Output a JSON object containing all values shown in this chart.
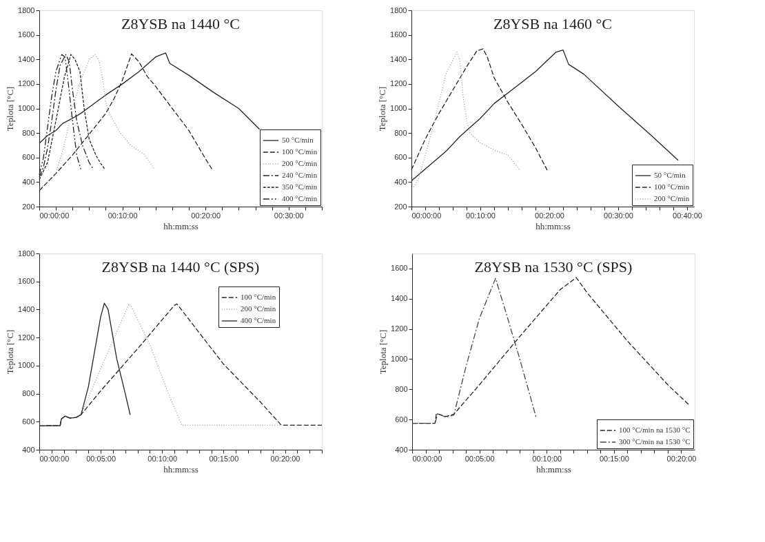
{
  "chart_data": [
    {
      "type": "line",
      "title": "Z8YSB na 1440 °C",
      "xlabel": "hh:mm:ss",
      "ylabel": "Teplota [°C]",
      "xlim": [
        0,
        34
      ],
      "ylim": [
        200,
        1800
      ],
      "xticks": [
        {
          "value": 0,
          "label": "00:00:00"
        },
        {
          "value": 2,
          "label": null
        },
        {
          "value": 4,
          "label": null
        },
        {
          "value": 6,
          "label": null
        },
        {
          "value": 8,
          "label": null
        },
        {
          "value": 10,
          "label": "00:10:00"
        },
        {
          "value": 12,
          "label": null
        },
        {
          "value": 14,
          "label": null
        },
        {
          "value": 16,
          "label": null
        },
        {
          "value": 18,
          "label": null
        },
        {
          "value": 20,
          "label": "00:20:00"
        },
        {
          "value": 22,
          "label": null
        },
        {
          "value": 24,
          "label": null
        },
        {
          "value": 26,
          "label": null
        },
        {
          "value": 28,
          "label": null
        },
        {
          "value": 30,
          "label": "00:30:00"
        },
        {
          "value": 32,
          "label": null
        },
        {
          "value": 34,
          "label": null
        }
      ],
      "yticks": [
        200,
        400,
        600,
        800,
        1000,
        1200,
        1400,
        1600,
        1800
      ],
      "grid": false,
      "legend": "bottom right",
      "series": [
        {
          "name": "50 °C/min",
          "color": "#222222",
          "line_style": "solid",
          "x": [
            0,
            1,
            2,
            2.8,
            4,
            5,
            6,
            7,
            8,
            10,
            12,
            14,
            15.2,
            15.7,
            18,
            21,
            24,
            26.5
          ],
          "values": [
            717,
            780,
            820,
            877,
            920,
            960,
            1010,
            1060,
            1110,
            1200,
            1300,
            1420,
            1453,
            1368,
            1270,
            1130,
            1000,
            830
          ]
        },
        {
          "name": "100 °C/min",
          "color": "#222222",
          "line_style": "dashed",
          "x": [
            0,
            2,
            4,
            6,
            8,
            9,
            10,
            11.1,
            12,
            13,
            14,
            16,
            18,
            20,
            20.8
          ],
          "values": [
            330,
            470,
            620,
            790,
            960,
            1080,
            1230,
            1445,
            1380,
            1260,
            1180,
            1000,
            820,
            590,
            503
          ]
        },
        {
          "name": "200 °C/min",
          "color": "#999999",
          "line_style": "dotted",
          "x": [
            0,
            2,
            3,
            4,
            5,
            6,
            6.7,
            7.2,
            7.6,
            8,
            8.5,
            9.7,
            11,
            12.6,
            13.9
          ],
          "values": [
            340,
            470,
            700,
            1000,
            1230,
            1400,
            1440,
            1390,
            1250,
            1050,
            950,
            806,
            700,
            628,
            503
          ]
        },
        {
          "name": "240 °C/min",
          "color": "#222222",
          "line_style": "dashdot",
          "x": [
            0,
            0.5,
            1,
            1.5,
            2,
            2.5,
            3.2,
            3.6,
            4,
            4.5,
            5.2,
            6,
            6.5
          ],
          "values": [
            440,
            520,
            680,
            900,
            1150,
            1350,
            1440,
            1380,
            1150,
            900,
            700,
            560,
            505
          ]
        },
        {
          "name": "350 °C/min",
          "color": "#222222",
          "line_style": "short_dashed",
          "x": [
            0,
            1,
            2,
            3,
            3.8,
            4.3,
            4.9,
            5.4,
            6,
            6.8,
            7.4,
            7.9
          ],
          "values": [
            420,
            560,
            900,
            1250,
            1440,
            1400,
            1300,
            1000,
            750,
            620,
            550,
            505
          ]
        },
        {
          "name": "400 °C/min",
          "color": "#222222",
          "line_style": "dashdotdot",
          "x": [
            0,
            0.5,
            1,
            1.5,
            2,
            2.7,
            3.1,
            3.5,
            4,
            4.5,
            5
          ],
          "values": [
            460,
            600,
            850,
            1100,
            1300,
            1440,
            1420,
            1200,
            900,
            620,
            505
          ]
        }
      ]
    },
    {
      "type": "line",
      "title": "Z8YSB na 1460 °C",
      "xlabel": "hh:mm:ss",
      "ylabel": "Teplota [°C]",
      "xlim": [
        0,
        41
      ],
      "ylim": [
        200,
        1800
      ],
      "xticks": [
        {
          "value": 0,
          "label": "00:00:00"
        },
        {
          "value": 2,
          "label": null
        },
        {
          "value": 4,
          "label": null
        },
        {
          "value": 6,
          "label": null
        },
        {
          "value": 8,
          "label": null
        },
        {
          "value": 10,
          "label": "00:10:00"
        },
        {
          "value": 12,
          "label": null
        },
        {
          "value": 14,
          "label": null
        },
        {
          "value": 16,
          "label": null
        },
        {
          "value": 18,
          "label": null
        },
        {
          "value": 20,
          "label": "00:20:00"
        },
        {
          "value": 22,
          "label": null
        },
        {
          "value": 24,
          "label": null
        },
        {
          "value": 26,
          "label": null
        },
        {
          "value": 28,
          "label": null
        },
        {
          "value": 30,
          "label": "00:30:00"
        },
        {
          "value": 32,
          "label": null
        },
        {
          "value": 34,
          "label": null
        },
        {
          "value": 36,
          "label": null
        },
        {
          "value": 38,
          "label": null
        },
        {
          "value": 40,
          "label": "00:40:00"
        }
      ],
      "yticks": [
        200,
        400,
        600,
        800,
        1000,
        1200,
        1400,
        1600,
        1800
      ],
      "grid": false,
      "legend": "bottom right",
      "series": [
        {
          "name": "50 °C/min",
          "color": "#222222",
          "line_style": "solid",
          "x": [
            0,
            5,
            7,
            8,
            10,
            12,
            15,
            18,
            21,
            22,
            22.8,
            25,
            30,
            35,
            38.7
          ],
          "values": [
            410,
            650,
            770,
            820,
            920,
            1040,
            1170,
            1300,
            1460,
            1477,
            1360,
            1280,
            1020,
            770,
            577
          ]
        },
        {
          "name": "100 °C/min",
          "color": "#222222",
          "line_style": "dashed",
          "x": [
            0,
            2,
            4,
            6,
            8,
            9.5,
            10.4,
            11,
            12,
            14,
            16,
            18,
            19.7
          ],
          "values": [
            500,
            750,
            960,
            1150,
            1340,
            1470,
            1486,
            1420,
            1250,
            1050,
            870,
            680,
            497
          ]
        },
        {
          "name": "200 °C/min",
          "color": "#999999",
          "line_style": "dotted",
          "x": [
            0.3,
            1,
            2,
            3,
            4,
            5,
            6.6,
            7,
            7.5,
            8,
            8.5,
            10,
            12,
            14,
            15.7
          ],
          "values": [
            360,
            420,
            620,
            820,
            1050,
            1280,
            1460,
            1400,
            1100,
            900,
            800,
            720,
            660,
            620,
            500
          ]
        }
      ]
    },
    {
      "type": "line",
      "title": "Z8YSB na 1440 °C (SPS)",
      "xlabel": "hh:mm:ss",
      "ylabel": "Teplota [°C]",
      "xlim": [
        0,
        23
      ],
      "ylim": [
        400,
        1800
      ],
      "xticks": [
        {
          "value": 0,
          "label": "00:00:00"
        },
        {
          "value": 1,
          "label": null
        },
        {
          "value": 2,
          "label": null
        },
        {
          "value": 3,
          "label": null
        },
        {
          "value": 4,
          "label": null
        },
        {
          "value": 5,
          "label": "00:05:00"
        },
        {
          "value": 6,
          "label": null
        },
        {
          "value": 7,
          "label": null
        },
        {
          "value": 8,
          "label": null
        },
        {
          "value": 9,
          "label": null
        },
        {
          "value": 10,
          "label": "00:10:00"
        },
        {
          "value": 11,
          "label": null
        },
        {
          "value": 12,
          "label": null
        },
        {
          "value": 13,
          "label": null
        },
        {
          "value": 14,
          "label": null
        },
        {
          "value": 15,
          "label": "00:15:00"
        },
        {
          "value": 16,
          "label": null
        },
        {
          "value": 17,
          "label": null
        },
        {
          "value": 18,
          "label": null
        },
        {
          "value": 19,
          "label": null
        },
        {
          "value": 20,
          "label": "00:20:00"
        },
        {
          "value": 21,
          "label": null
        },
        {
          "value": 22,
          "label": null
        },
        {
          "value": 23,
          "label": null
        }
      ],
      "yticks": [
        400,
        600,
        800,
        1000,
        1200,
        1400,
        1600,
        1800
      ],
      "grid": false,
      "legend": "top right",
      "series": [
        {
          "name": "100 °C/min",
          "color": "#222222",
          "line_style": "dashed",
          "x": [
            0,
            1.7,
            1.8,
            2.1,
            2.5,
            3,
            3.4,
            5,
            8,
            11,
            11.2,
            12,
            15,
            18,
            19.7,
            23
          ],
          "values": [
            570,
            572,
            620,
            640,
            625,
            630,
            650,
            820,
            1120,
            1430,
            1440,
            1350,
            1010,
            740,
            575,
            575
          ]
        },
        {
          "name": "200 °C/min",
          "color": "#999999",
          "line_style": "dotted",
          "x": [
            0,
            1.7,
            1.8,
            2.1,
            2.5,
            3,
            3.4,
            5,
            7.3,
            7.5,
            9,
            10.5,
            11.6,
            19.7
          ],
          "values": [
            570,
            572,
            620,
            640,
            625,
            630,
            650,
            980,
            1440,
            1420,
            1150,
            800,
            575,
            575
          ]
        },
        {
          "name": "400 °C/min",
          "color": "#222222",
          "line_style": "solid",
          "x": [
            0,
            1.7,
            1.8,
            2.1,
            2.5,
            3,
            3.4,
            4,
            5,
            5.3,
            5.6,
            6.3,
            7,
            7.4
          ],
          "values": [
            570,
            572,
            620,
            640,
            625,
            630,
            650,
            850,
            1350,
            1445,
            1400,
            1050,
            800,
            648
          ]
        }
      ]
    },
    {
      "type": "line",
      "title": "Z8YSB na 1530 °C (SPS)",
      "xlabel": "hh:mm:ss",
      "ylabel": "Teplota [°C]",
      "xlim": [
        0,
        21
      ],
      "ylim": [
        400,
        1700
      ],
      "xticks": [
        {
          "value": 0,
          "label": "00:00:00"
        },
        {
          "value": 1,
          "label": null
        },
        {
          "value": 2,
          "label": null
        },
        {
          "value": 3,
          "label": null
        },
        {
          "value": 4,
          "label": null
        },
        {
          "value": 5,
          "label": "00:05:00"
        },
        {
          "value": 6,
          "label": null
        },
        {
          "value": 7,
          "label": null
        },
        {
          "value": 8,
          "label": null
        },
        {
          "value": 9,
          "label": null
        },
        {
          "value": 10,
          "label": "00:10:00"
        },
        {
          "value": 11,
          "label": null
        },
        {
          "value": 12,
          "label": null
        },
        {
          "value": 13,
          "label": null
        },
        {
          "value": 14,
          "label": null
        },
        {
          "value": 15,
          "label": "00:15:00"
        },
        {
          "value": 16,
          "label": null
        },
        {
          "value": 17,
          "label": null
        },
        {
          "value": 18,
          "label": null
        },
        {
          "value": 19,
          "label": null
        },
        {
          "value": 20,
          "label": "00:20:00"
        }
      ],
      "yticks": [
        400,
        600,
        800,
        1000,
        1200,
        1400,
        1600
      ],
      "grid": false,
      "legend": "bottom right",
      "series": [
        {
          "name": "100 °C/min na 1530 °C",
          "color": "#222222",
          "line_style": "dashed",
          "x": [
            0,
            1.7,
            1.8,
            2.5,
            3.1,
            5,
            8,
            11,
            12.2,
            13,
            16,
            19,
            20.6
          ],
          "values": [
            575,
            575,
            640,
            620,
            635,
            830,
            1150,
            1460,
            1540,
            1440,
            1120,
            830,
            695
          ]
        },
        {
          "name": "300 °C/min na 1530 °C",
          "color": "#444444",
          "line_style": "dashdot",
          "x": [
            0,
            1.7,
            1.9,
            2.5,
            3.1,
            4,
            5,
            6.2,
            7,
            8,
            9.2
          ],
          "values": [
            575,
            575,
            640,
            615,
            630,
            950,
            1270,
            1535,
            1300,
            1000,
            619
          ]
        }
      ]
    }
  ]
}
